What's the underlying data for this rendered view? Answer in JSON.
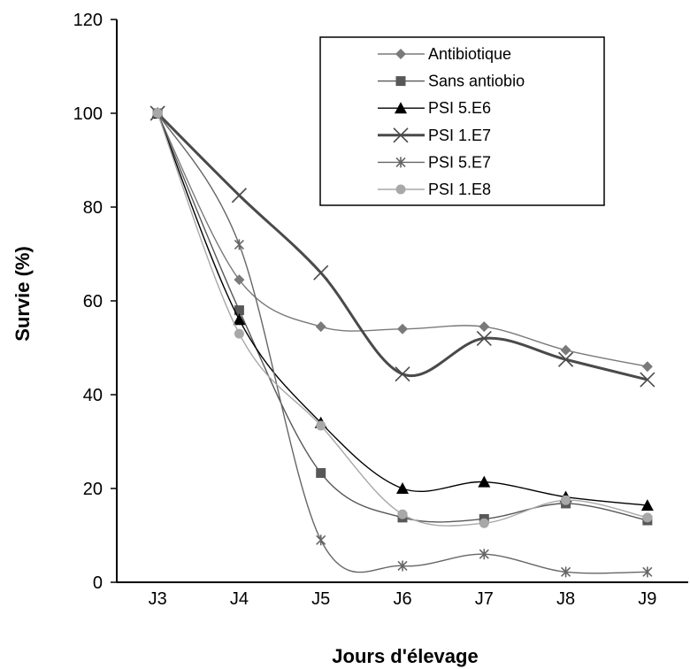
{
  "chart_data": {
    "type": "line",
    "title": "",
    "xlabel": "Jours d'élevage",
    "ylabel": "Survie (%)",
    "ylim": [
      0,
      120
    ],
    "yticks": [
      0,
      20,
      40,
      60,
      80,
      100,
      120
    ],
    "categories": [
      "J3",
      "J4",
      "J5",
      "J6",
      "J7",
      "J8",
      "J9"
    ],
    "grid": false,
    "legend_position": "top-right",
    "series": [
      {
        "name": "Antibiotique",
        "marker": "diamond",
        "color": "#7a7a7a",
        "values": [
          100,
          64.5,
          54.5,
          54,
          54.5,
          49.5,
          46
        ]
      },
      {
        "name": "Sans antiobio",
        "marker": "square",
        "color": "#585858",
        "values": [
          100,
          58,
          23.3,
          13.8,
          13.5,
          16.8,
          13.2
        ]
      },
      {
        "name": "PSI 5.E6",
        "marker": "triangle",
        "color": "#000000",
        "values": [
          100,
          56,
          34,
          20,
          21.4,
          18.2,
          16.4
        ]
      },
      {
        "name": "PSI 1.E7",
        "marker": "x",
        "color": "#4a4a4a",
        "values": [
          100,
          82.5,
          66,
          44.4,
          52,
          47.5,
          43.2
        ]
      },
      {
        "name": "PSI 5.E7",
        "marker": "star",
        "color": "#666666",
        "values": [
          100,
          72,
          9,
          3.5,
          6,
          2.2,
          2.2
        ]
      },
      {
        "name": "PSI 1.E8",
        "marker": "circle",
        "color": "#a8a8a8",
        "values": [
          100,
          53,
          33.4,
          14.5,
          12.6,
          17.5,
          13.8
        ]
      }
    ]
  }
}
